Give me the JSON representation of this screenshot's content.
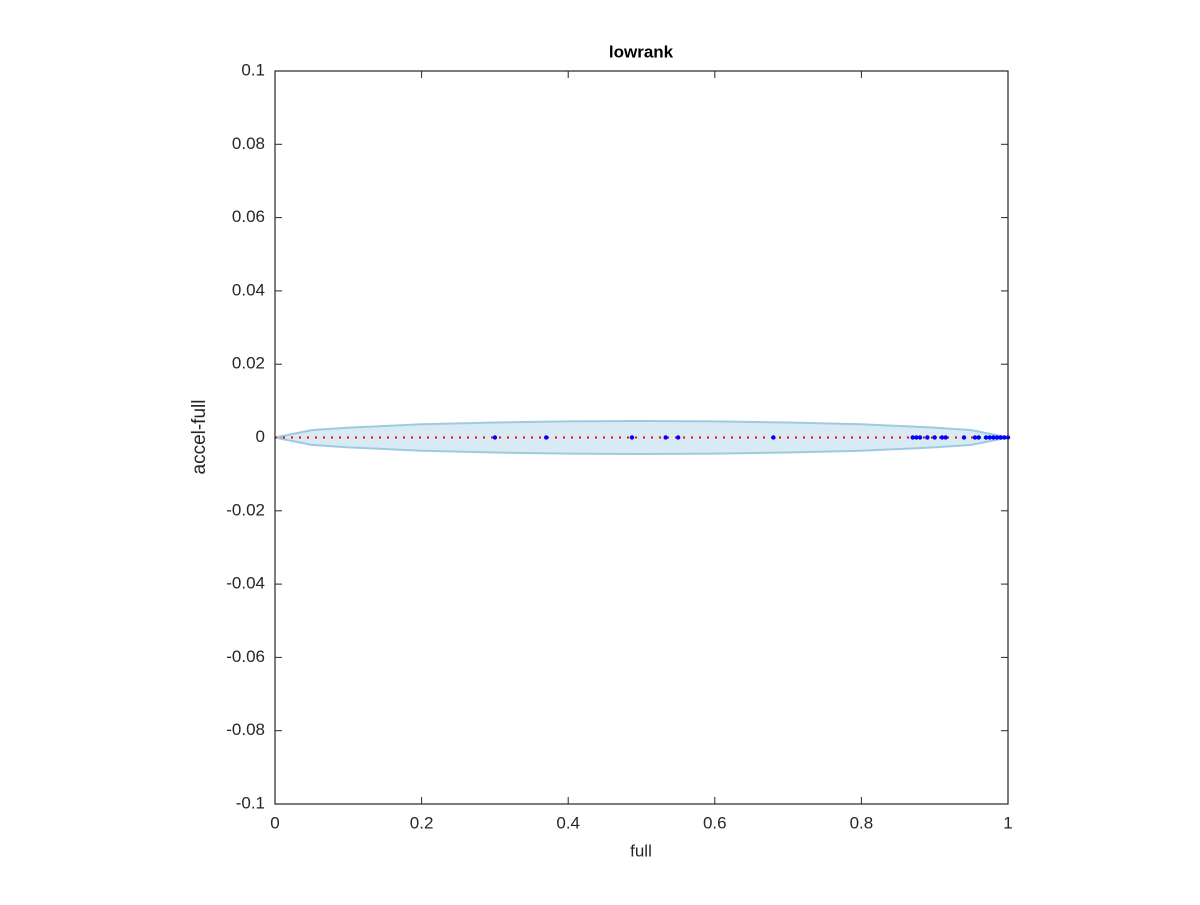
{
  "chart_data": {
    "type": "scatter",
    "title": "lowrank",
    "xlabel": "full",
    "ylabel": "accel-full",
    "xlim": [
      0,
      1
    ],
    "ylim": [
      -0.1,
      0.1
    ],
    "xticks": [
      0,
      0.2,
      0.4,
      0.6,
      0.8,
      1
    ],
    "yticks": [
      -0.1,
      -0.08,
      -0.06,
      -0.04,
      -0.02,
      0,
      0.02,
      0.04,
      0.06,
      0.08,
      0.1
    ],
    "band": {
      "color": "#9ecae1",
      "x": [
        0,
        0.05,
        0.1,
        0.2,
        0.3,
        0.4,
        0.5,
        0.6,
        0.7,
        0.8,
        0.9,
        0.95,
        1
      ],
      "upper": [
        0,
        0.002,
        0.0027,
        0.0036,
        0.0041,
        0.0044,
        0.0045,
        0.0044,
        0.0041,
        0.0036,
        0.0027,
        0.002,
        0
      ],
      "lower": [
        0,
        -0.002,
        -0.0027,
        -0.0036,
        -0.0041,
        -0.0044,
        -0.0045,
        -0.0044,
        -0.0041,
        -0.0036,
        -0.0027,
        -0.002,
        0
      ]
    },
    "line": {
      "color": "#ff0000",
      "x": [
        0,
        1
      ],
      "values": [
        0,
        0
      ]
    },
    "series": [
      {
        "color": "#0000ff",
        "x": [
          0.3,
          0.37,
          0.487,
          0.533,
          0.55,
          0.68,
          0.87,
          0.875,
          0.88,
          0.89,
          0.9,
          0.91,
          0.915,
          0.94,
          0.955,
          0.96,
          0.97,
          0.975,
          0.98,
          0.985,
          0.99,
          0.995,
          1
        ],
        "values": [
          0,
          0,
          0,
          0,
          0,
          0,
          0,
          0,
          0,
          0,
          0,
          0,
          0,
          0,
          0,
          0,
          0,
          0,
          0,
          0,
          0,
          0,
          0
        ]
      }
    ]
  }
}
